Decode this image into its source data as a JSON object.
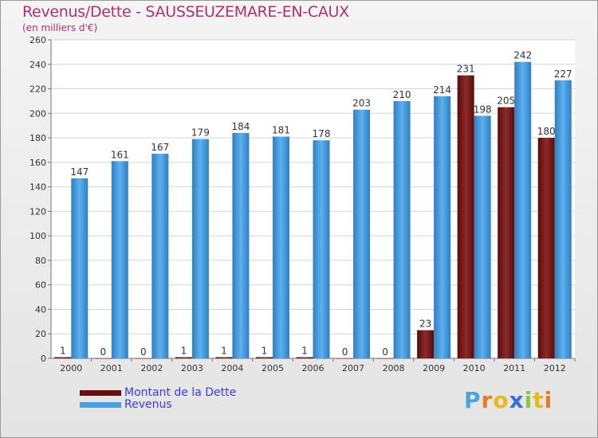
{
  "title": "Revenus/Dette - SAUSSEUZEMARE-EN-CAUX",
  "subtitle": "(en milliers d'€)",
  "logo": {
    "chars": [
      "P",
      "r",
      "o",
      "x",
      "i",
      "t",
      "i"
    ],
    "colors": [
      "#4aa3df",
      "#e87d1e",
      "#e8b81e",
      "#3a6fd6",
      "#8ac63e",
      "#e8b81e",
      "#e87d1e"
    ]
  },
  "colors": {
    "dette": "#6b0d0d",
    "revenus": "#4a9fe3",
    "title": "#b0306a",
    "legend_text": "#3a3adb"
  },
  "chart_data": {
    "type": "bar",
    "title": "Revenus/Dette - SAUSSEUZEMARE-EN-CAUX",
    "ylabel": "(en milliers d'€)",
    "categories": [
      "2000",
      "2001",
      "2002",
      "2003",
      "2004",
      "2005",
      "2006",
      "2007",
      "2008",
      "2009",
      "2010",
      "2011",
      "2012"
    ],
    "series": [
      {
        "name": "Montant de la Dette",
        "values": [
          1,
          0,
          0,
          1,
          1,
          1,
          1,
          0,
          0,
          23,
          231,
          205,
          180
        ]
      },
      {
        "name": "Revenus",
        "values": [
          147,
          161,
          167,
          179,
          184,
          181,
          178,
          203,
          210,
          214,
          198,
          242,
          227
        ]
      }
    ],
    "ylim": [
      0,
      260
    ],
    "yticks": [
      0,
      20,
      40,
      60,
      80,
      100,
      120,
      140,
      160,
      180,
      200,
      220,
      240,
      260
    ],
    "grid": true,
    "legend": "bottom-left"
  }
}
